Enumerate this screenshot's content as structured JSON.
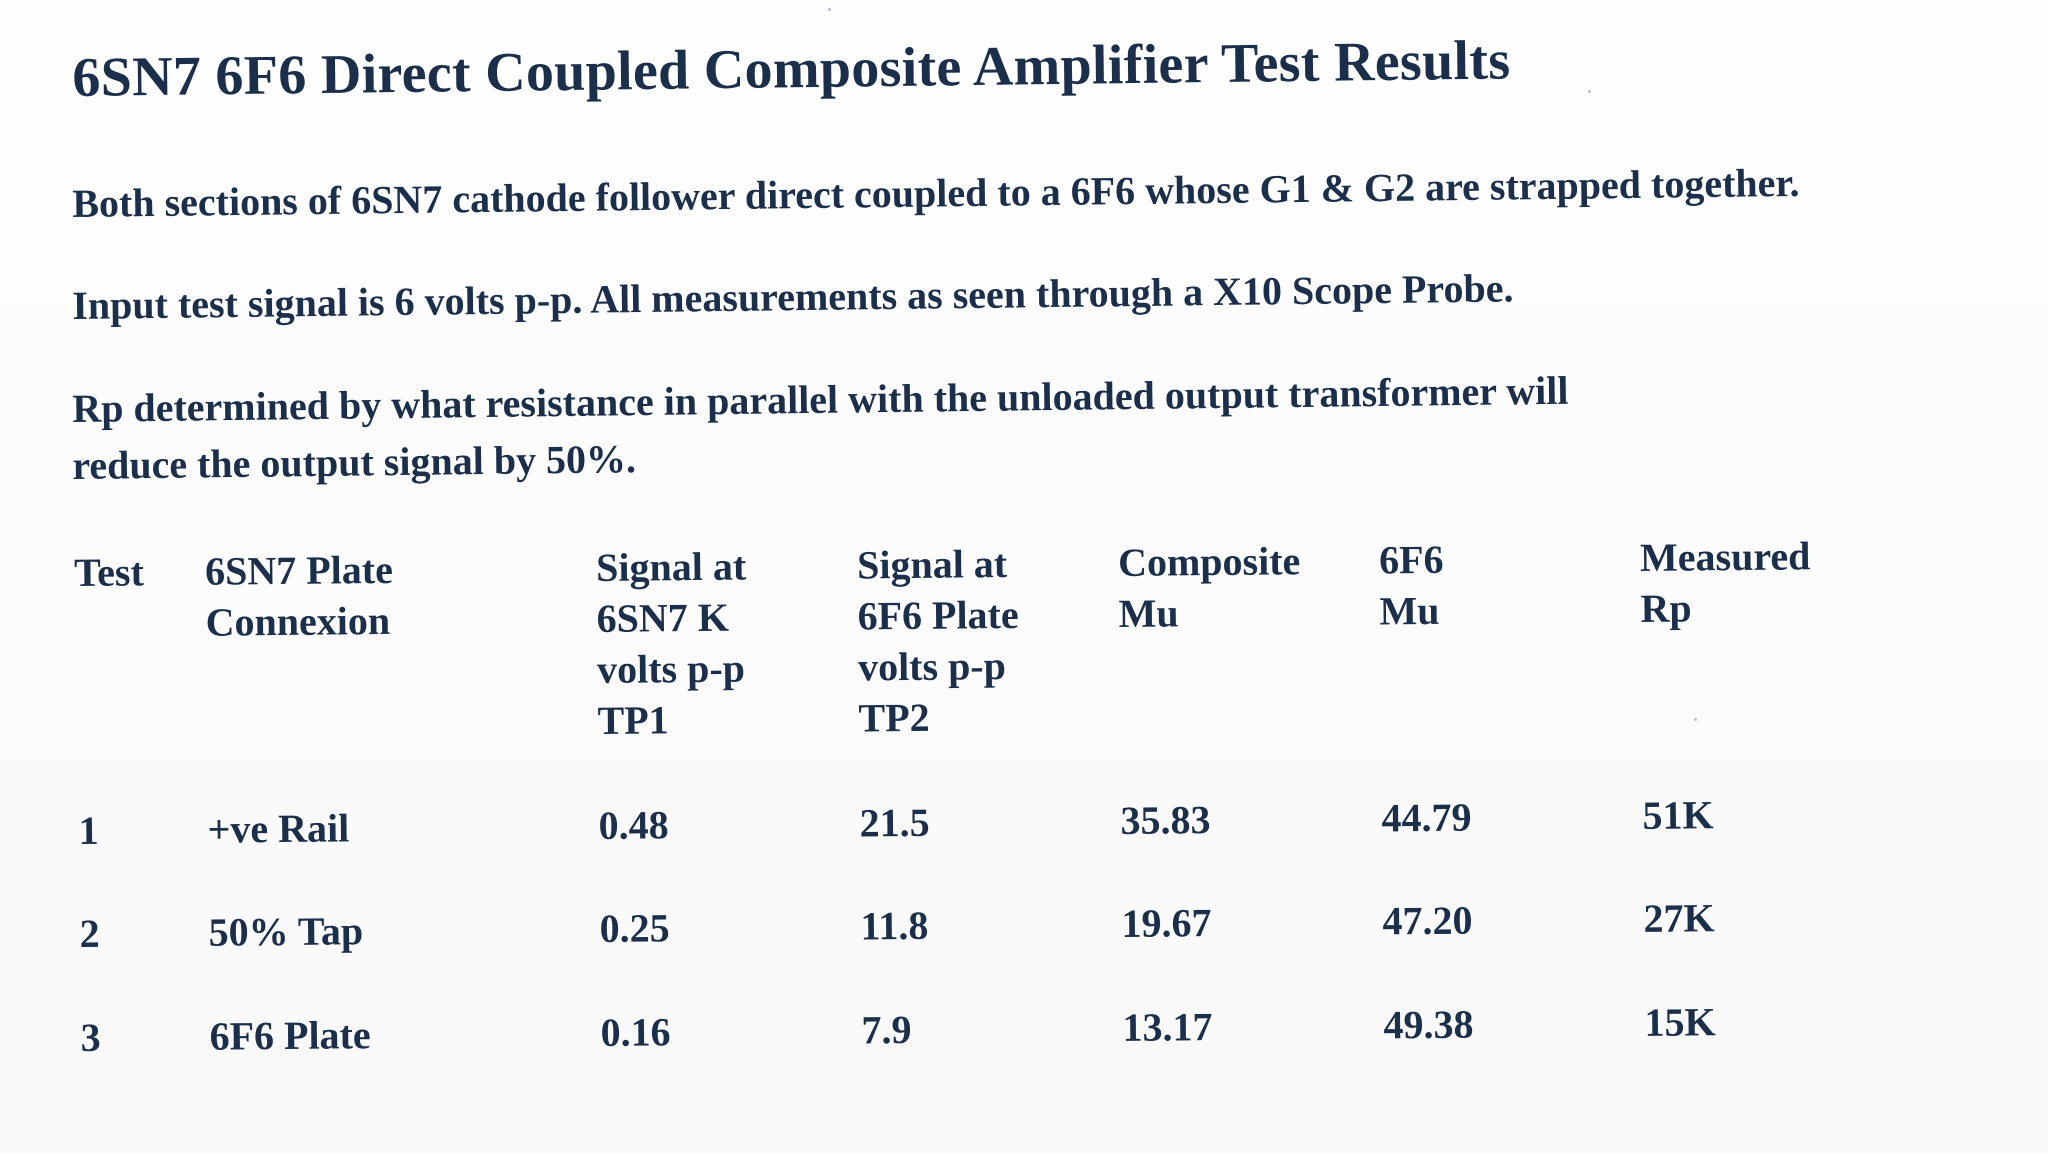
{
  "document": {
    "title": "6SN7 6F6 Direct Coupled Composite Amplifier Test Results",
    "paragraphs": [
      "Both sections of 6SN7 cathode follower direct coupled to a 6F6 whose G1 & G2 are strapped together.",
      "Input test signal is 6 volts p-p. All measurements as seen through a X10 Scope Probe.",
      "Rp determined by what resistance in parallel with the unloaded output transformer will",
      "reduce the output signal by 50%."
    ]
  },
  "table": {
    "headers": [
      [
        "Test"
      ],
      [
        "6SN7 Plate",
        "Connexion"
      ],
      [
        "Signal at",
        "6SN7 K",
        "volts p-p",
        "TP1"
      ],
      [
        "Signal at",
        "6F6 Plate",
        "volts p-p",
        "TP2"
      ],
      [
        "Composite",
        "Mu"
      ],
      [
        "6F6",
        "Mu"
      ],
      [
        "Measured",
        "Rp"
      ]
    ],
    "rows": [
      [
        "1",
        "+ve Rail",
        "0.48",
        "21.5",
        "35.83",
        "44.79",
        "51K"
      ],
      [
        "2",
        "50% Tap",
        "0.25",
        "11.8",
        "19.67",
        "47.20",
        "27K"
      ],
      [
        "3",
        "6F6 Plate",
        "0.16",
        "7.9",
        "13.17",
        "49.38",
        "15K"
      ]
    ]
  }
}
